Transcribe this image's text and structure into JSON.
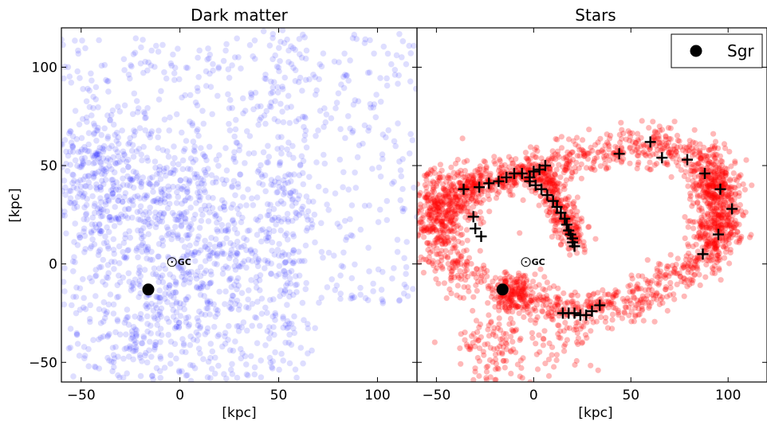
{
  "chart_data": [
    {
      "type": "scatter",
      "title": "Dark matter",
      "xlabel": "[kpc]",
      "ylabel": "[kpc]",
      "xlim": [
        -60,
        120
      ],
      "ylim": [
        -60,
        120
      ],
      "x_ticks": [
        -50,
        0,
        50,
        100
      ],
      "y_ticks": [
        -50,
        0,
        50,
        100
      ],
      "x_tick_labels": [
        "−50",
        "0",
        "50",
        "100"
      ],
      "y_tick_labels": [
        "−50",
        "0",
        "50",
        "100"
      ],
      "point_color": "#0000ff",
      "galactic_center": {
        "x": -4,
        "y": 1,
        "label": "GC"
      },
      "sgr": {
        "x": -16,
        "y": -13
      }
    },
    {
      "type": "scatter",
      "title": "Stars",
      "xlabel": "[kpc]",
      "xlim": [
        -60,
        120
      ],
      "ylim": [
        -60,
        120
      ],
      "x_ticks": [
        -50,
        0,
        50,
        100
      ],
      "y_ticks": [
        -50,
        0,
        50,
        100
      ],
      "x_tick_labels": [
        "−50",
        "0",
        "50",
        "100"
      ],
      "point_color": "#ff0000",
      "galactic_center": {
        "x": -4,
        "y": 1,
        "label": "GC"
      },
      "sgr": {
        "x": -16,
        "y": -13
      },
      "legend": {
        "position": "top-right",
        "entries": [
          "Sgr"
        ]
      },
      "plus_markers": [
        [
          -36,
          38
        ],
        [
          -28,
          39
        ],
        [
          -23,
          41
        ],
        [
          -18,
          42
        ],
        [
          -14,
          44
        ],
        [
          -10,
          46
        ],
        [
          -6,
          46
        ],
        [
          -2,
          44
        ],
        [
          0,
          47
        ],
        [
          3,
          48
        ],
        [
          6,
          50
        ],
        [
          -2,
          42
        ],
        [
          1,
          40
        ],
        [
          4,
          38
        ],
        [
          7,
          35
        ],
        [
          10,
          32
        ],
        [
          12,
          29
        ],
        [
          14,
          26
        ],
        [
          16,
          23
        ],
        [
          17,
          20
        ],
        [
          18,
          17
        ],
        [
          19,
          15
        ],
        [
          20,
          13
        ],
        [
          20,
          11
        ],
        [
          21,
          9
        ],
        [
          -31,
          24
        ],
        [
          -30,
          18
        ],
        [
          -27,
          14
        ],
        [
          15,
          -25
        ],
        [
          18,
          -25
        ],
        [
          21,
          -25
        ],
        [
          24,
          -26
        ],
        [
          27,
          -26
        ],
        [
          30,
          -24
        ],
        [
          34,
          -21
        ],
        [
          44,
          56
        ],
        [
          60,
          62
        ],
        [
          66,
          54
        ],
        [
          79,
          53
        ],
        [
          88,
          46
        ],
        [
          96,
          38
        ],
        [
          102,
          28
        ],
        [
          95,
          15
        ],
        [
          87,
          5
        ]
      ]
    }
  ]
}
